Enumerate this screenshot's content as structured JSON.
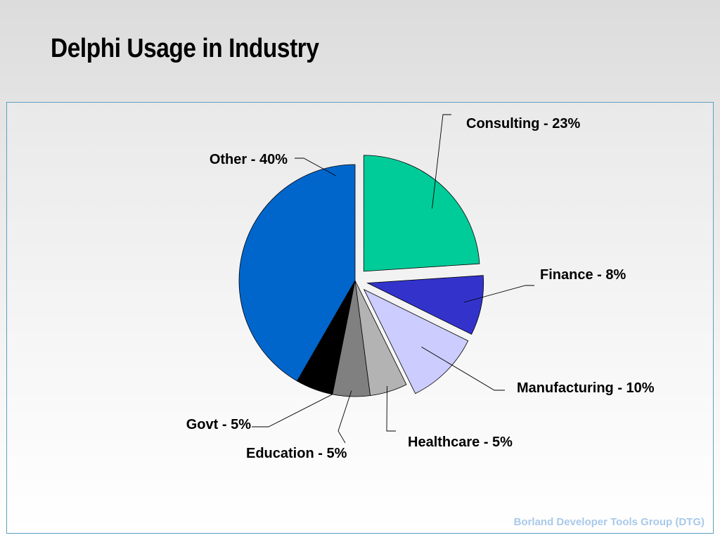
{
  "slide": {
    "title": "Delphi Usage in Industry",
    "footer": "Borland Developer Tools Group (DTG)"
  },
  "chart_data": {
    "type": "pie",
    "categories": [
      "Consulting",
      "Finance",
      "Manufacturing",
      "Healthcare",
      "Education",
      "Govt",
      "Other"
    ],
    "values": [
      23,
      8,
      10,
      5,
      5,
      5,
      40
    ],
    "labels": [
      "Consulting - 23%",
      "Finance - 8%",
      "Manufacturing - 10%",
      "Healthcare - 5%",
      "Education - 5%",
      "Govt - 5%",
      "Other - 40%"
    ],
    "colors": [
      "#00cc99",
      "#3333cc",
      "#ccccff",
      "#b3b3b3",
      "#808080",
      "#000000",
      "#0066cc"
    ],
    "exploded": [
      "Consulting",
      "Finance",
      "Manufacturing"
    ],
    "start_angle": "12 o'clock",
    "direction": "clockwise"
  }
}
